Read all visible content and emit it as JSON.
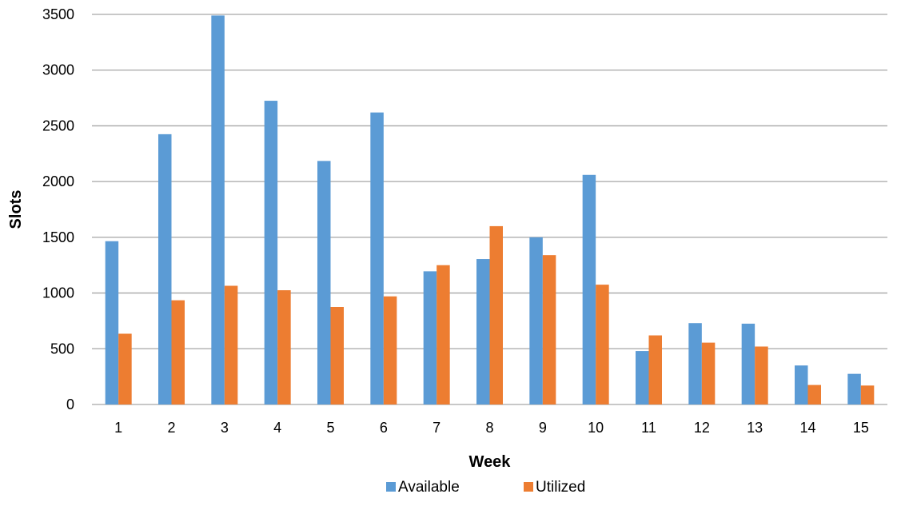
{
  "chart_data": {
    "type": "bar",
    "title": "",
    "xlabel": "Week",
    "ylabel": "Slots",
    "categories": [
      "1",
      "2",
      "3",
      "4",
      "5",
      "6",
      "7",
      "8",
      "9",
      "10",
      "11",
      "12",
      "13",
      "14",
      "15"
    ],
    "series": [
      {
        "name": "Available",
        "color": "#5b9bd5",
        "values": [
          1465,
          2425,
          3490,
          2725,
          2185,
          2620,
          1195,
          1305,
          1500,
          2060,
          480,
          730,
          725,
          350,
          275
        ]
      },
      {
        "name": "Utilized",
        "color": "#ed7d31",
        "values": [
          635,
          935,
          1065,
          1025,
          875,
          970,
          1250,
          1600,
          1340,
          1075,
          620,
          555,
          520,
          175,
          170
        ]
      }
    ],
    "ylim": [
      0,
      3500
    ],
    "yticks": [
      "0",
      "500",
      "1000",
      "1500",
      "2000",
      "2500",
      "3000",
      "3500"
    ],
    "grid": true,
    "legend_position": "bottom"
  }
}
